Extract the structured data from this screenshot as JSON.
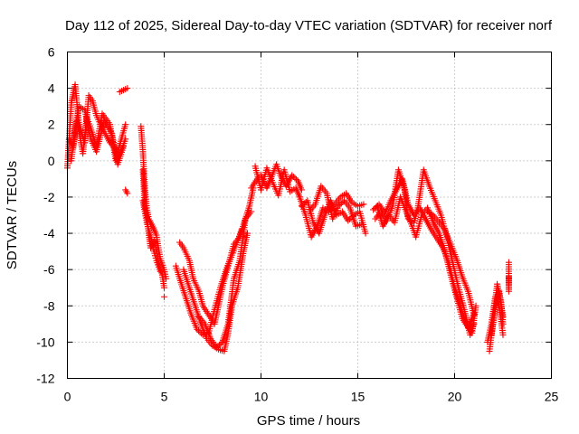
{
  "chart_data": {
    "type": "scatter",
    "title": "Day 112 of 2025, Sidereal Day-to-day VTEC variation (SDTVAR) for receiver norf",
    "xlabel": "GPS time / hours",
    "ylabel": "SDTVAR / TECUs",
    "xlim": [
      0,
      25
    ],
    "ylim": [
      -12,
      6
    ],
    "xticks": [
      0,
      5,
      10,
      15,
      20,
      25
    ],
    "yticks": [
      -12,
      -10,
      -8,
      -6,
      -4,
      -2,
      0,
      2,
      4,
      6
    ],
    "grid": true,
    "marker": "+",
    "series_color": "#ff0000",
    "tracks": [
      [
        [
          0.0,
          -0.4
        ],
        [
          0.2,
          3.2
        ],
        [
          0.4,
          4.2
        ],
        [
          0.6,
          2.0
        ],
        [
          0.9,
          1.0
        ],
        [
          1.1,
          3.6
        ],
        [
          1.3,
          3.3
        ],
        [
          1.5,
          2.5
        ],
        [
          1.8,
          1.8
        ],
        [
          2.2,
          1.0
        ],
        [
          2.6,
          0.5
        ],
        [
          3.0,
          2.0
        ]
      ],
      [
        [
          0.1,
          1.2
        ],
        [
          0.3,
          0.7
        ],
        [
          0.5,
          2.2
        ],
        [
          0.8,
          0.4
        ],
        [
          1.0,
          2.4
        ],
        [
          1.2,
          1.8
        ],
        [
          1.5,
          0.8
        ],
        [
          1.8,
          2.6
        ],
        [
          2.2,
          2.0
        ],
        [
          2.5,
          0.0
        ],
        [
          2.8,
          0.6
        ],
        [
          3.0,
          1.2
        ]
      ],
      [
        [
          0.2,
          0.0
        ],
        [
          0.4,
          1.8
        ],
        [
          0.6,
          3.0
        ],
        [
          0.9,
          2.8
        ],
        [
          1.2,
          1.2
        ],
        [
          1.5,
          0.5
        ],
        [
          1.9,
          2.2
        ],
        [
          2.3,
          1.5
        ],
        [
          2.6,
          -0.2
        ],
        [
          2.9,
          0.8
        ]
      ],
      [
        [
          2.7,
          3.8
        ],
        [
          2.9,
          3.9
        ],
        [
          3.1,
          4.0
        ]
      ],
      [
        [
          3.0,
          -1.6
        ],
        [
          3.1,
          -1.8
        ]
      ],
      [
        [
          3.8,
          1.9
        ],
        [
          3.9,
          0.5
        ],
        [
          4.0,
          -1.5
        ],
        [
          4.1,
          -2.6
        ],
        [
          4.2,
          -3.2
        ],
        [
          4.4,
          -3.6
        ],
        [
          4.6,
          -4.1
        ],
        [
          4.7,
          -4.8
        ],
        [
          4.8,
          -5.4
        ],
        [
          5.0,
          -6.0
        ],
        [
          5.1,
          -6.5
        ]
      ],
      [
        [
          3.9,
          -0.5
        ],
        [
          4.0,
          -2.5
        ],
        [
          4.1,
          -3.0
        ],
        [
          4.2,
          -4.0
        ],
        [
          4.3,
          -4.8
        ],
        [
          4.5,
          -4.4
        ],
        [
          4.7,
          -5.6
        ],
        [
          4.9,
          -6.3
        ],
        [
          5.0,
          -7.0
        ]
      ],
      [
        [
          3.9,
          -2.2
        ],
        [
          4.1,
          -3.4
        ],
        [
          4.3,
          -4.2
        ],
        [
          4.5,
          -5.1
        ],
        [
          4.6,
          -5.5
        ],
        [
          4.8,
          -6.1
        ]
      ],
      [
        [
          5.0,
          -7.5
        ]
      ],
      [
        [
          5.8,
          -4.5
        ],
        [
          6.0,
          -4.8
        ],
        [
          6.3,
          -5.5
        ],
        [
          6.5,
          -6.5
        ],
        [
          6.8,
          -7.2
        ],
        [
          7.0,
          -8.0
        ],
        [
          7.3,
          -8.5
        ],
        [
          7.6,
          -9.0
        ],
        [
          7.8,
          -8.0
        ],
        [
          8.0,
          -7.0
        ],
        [
          8.3,
          -5.8
        ],
        [
          8.6,
          -4.6
        ],
        [
          8.9,
          -4.2
        ],
        [
          9.1,
          -3.5
        ],
        [
          9.4,
          -2.5
        ],
        [
          9.6,
          -1.5
        ]
      ],
      [
        [
          6.0,
          -6.0
        ],
        [
          6.3,
          -7.0
        ],
        [
          6.6,
          -8.0
        ],
        [
          6.9,
          -9.0
        ],
        [
          7.2,
          -9.8
        ],
        [
          7.5,
          -10.2
        ],
        [
          7.8,
          -10.4
        ],
        [
          8.1,
          -10.5
        ],
        [
          8.3,
          -9.5
        ],
        [
          8.5,
          -8.0
        ],
        [
          8.8,
          -7.0
        ],
        [
          9.1,
          -5.0
        ],
        [
          9.3,
          -4.0
        ]
      ],
      [
        [
          5.6,
          -5.8
        ],
        [
          5.8,
          -6.5
        ],
        [
          6.1,
          -7.5
        ],
        [
          6.4,
          -8.5
        ],
        [
          6.7,
          -9.3
        ],
        [
          7.0,
          -9.6
        ],
        [
          7.3,
          -9.5
        ],
        [
          7.6,
          -8.2
        ],
        [
          7.9,
          -7.0
        ],
        [
          8.2,
          -6.0
        ],
        [
          8.5,
          -5.2
        ],
        [
          8.8,
          -4.4
        ],
        [
          9.0,
          -3.8
        ]
      ],
      [
        [
          6.8,
          -8.6
        ],
        [
          7.1,
          -9.0
        ],
        [
          7.4,
          -9.8
        ],
        [
          7.7,
          -10.3
        ],
        [
          8.0,
          -10.0
        ],
        [
          8.3,
          -9.0
        ],
        [
          8.6,
          -6.5
        ],
        [
          8.9,
          -5.5
        ],
        [
          9.2,
          -3.2
        ],
        [
          9.5,
          -2.8
        ]
      ],
      [
        [
          9.5,
          -1.5
        ],
        [
          9.8,
          -1.0
        ],
        [
          10.0,
          -0.8
        ],
        [
          10.3,
          -1.5
        ],
        [
          10.5,
          -1.0
        ],
        [
          10.8,
          -0.2
        ],
        [
          11.0,
          -0.8
        ],
        [
          11.3,
          -1.4
        ],
        [
          11.6,
          -0.8
        ],
        [
          11.9,
          -1.1
        ],
        [
          12.1,
          -1.6
        ]
      ],
      [
        [
          9.7,
          -0.3
        ],
        [
          10.0,
          -1.6
        ],
        [
          10.3,
          -0.4
        ],
        [
          10.6,
          -1.2
        ],
        [
          10.9,
          -1.9
        ],
        [
          11.2,
          -0.5
        ],
        [
          11.5,
          -1.7
        ],
        [
          11.8,
          -1.5
        ],
        [
          12.0,
          -2.0
        ]
      ],
      [
        [
          12.0,
          -2.0
        ],
        [
          12.3,
          -3.0
        ],
        [
          12.6,
          -4.2
        ],
        [
          12.9,
          -3.6
        ],
        [
          13.2,
          -2.6
        ],
        [
          13.5,
          -2.8
        ],
        [
          13.8,
          -2.4
        ],
        [
          14.1,
          -2.0
        ],
        [
          14.4,
          -1.8
        ],
        [
          14.7,
          -2.3
        ],
        [
          15.0,
          -2.5
        ],
        [
          15.3,
          -2.4
        ]
      ],
      [
        [
          12.1,
          -2.5
        ],
        [
          12.4,
          -2.2
        ],
        [
          12.7,
          -3.4
        ],
        [
          13.0,
          -4.0
        ],
        [
          13.3,
          -3.0
        ],
        [
          13.6,
          -2.2
        ],
        [
          13.9,
          -3.0
        ],
        [
          14.2,
          -2.8
        ],
        [
          14.5,
          -3.3
        ],
        [
          14.8,
          -3.0
        ],
        [
          15.1,
          -2.8
        ],
        [
          15.4,
          -4.0
        ]
      ],
      [
        [
          12.5,
          -2.8
        ],
        [
          12.8,
          -2.4
        ],
        [
          13.1,
          -1.4
        ],
        [
          13.4,
          -1.8
        ],
        [
          13.7,
          -3.2
        ],
        [
          14.0,
          -2.5
        ],
        [
          14.3,
          -2.2
        ],
        [
          14.6,
          -2.6
        ],
        [
          14.9,
          -3.6
        ],
        [
          15.2,
          -3.5
        ]
      ],
      [
        [
          15.8,
          -2.7
        ],
        [
          16.1,
          -2.4
        ],
        [
          16.4,
          -2.9
        ],
        [
          16.7,
          -2.2
        ],
        [
          17.0,
          -1.6
        ],
        [
          17.3,
          -1.0
        ],
        [
          17.6,
          -2.4
        ],
        [
          17.9,
          -3.0
        ],
        [
          18.2,
          -2.6
        ],
        [
          18.5,
          -3.2
        ],
        [
          18.8,
          -3.8
        ],
        [
          19.1,
          -4.3
        ],
        [
          19.4,
          -4.8
        ],
        [
          19.7,
          -5.6
        ],
        [
          20.0,
          -7.0
        ],
        [
          20.3,
          -8.0
        ],
        [
          20.6,
          -9.0
        ],
        [
          20.9,
          -9.5
        ],
        [
          21.1,
          -8.0
        ]
      ],
      [
        [
          15.9,
          -3.2
        ],
        [
          16.2,
          -2.8
        ],
        [
          16.5,
          -3.3
        ],
        [
          16.8,
          -2.5
        ],
        [
          17.1,
          -0.5
        ],
        [
          17.4,
          -1.5
        ],
        [
          17.6,
          -3.2
        ],
        [
          17.9,
          -3.4
        ],
        [
          18.1,
          -2.6
        ],
        [
          18.4,
          -0.5
        ],
        [
          18.7,
          -1.4
        ],
        [
          19.0,
          -2.2
        ],
        [
          19.3,
          -3.0
        ],
        [
          19.6,
          -4.2
        ],
        [
          19.9,
          -5.6
        ],
        [
          20.2,
          -7.0
        ],
        [
          20.5,
          -8.2
        ],
        [
          20.8,
          -9.6
        ],
        [
          21.0,
          -9.0
        ]
      ],
      [
        [
          16.0,
          -2.5
        ],
        [
          16.3,
          -3.6
        ],
        [
          16.6,
          -3.0
        ],
        [
          16.9,
          -3.4
        ],
        [
          17.2,
          -2.0
        ],
        [
          17.5,
          -2.8
        ],
        [
          17.8,
          -3.6
        ],
        [
          18.0,
          -4.2
        ],
        [
          18.3,
          -3.0
        ],
        [
          18.6,
          -2.6
        ],
        [
          18.9,
          -3.4
        ],
        [
          19.2,
          -4.0
        ],
        [
          19.5,
          -5.0
        ],
        [
          19.8,
          -6.3
        ],
        [
          20.1,
          -7.5
        ],
        [
          20.4,
          -8.7
        ],
        [
          20.7,
          -9.2
        ],
        [
          21.0,
          -8.4
        ]
      ],
      [
        [
          18.6,
          -2.8
        ],
        [
          18.9,
          -3.0
        ],
        [
          19.2,
          -3.4
        ],
        [
          19.5,
          -3.8
        ],
        [
          19.8,
          -4.6
        ],
        [
          20.1,
          -5.4
        ],
        [
          20.4,
          -6.4
        ],
        [
          20.7,
          -7.2
        ],
        [
          21.0,
          -8.5
        ]
      ],
      [
        [
          21.7,
          -10.0
        ],
        [
          21.9,
          -9.0
        ],
        [
          22.1,
          -7.5
        ],
        [
          22.3,
          -8.0
        ],
        [
          22.5,
          -9.6
        ]
      ],
      [
        [
          21.8,
          -10.5
        ],
        [
          22.0,
          -8.8
        ],
        [
          22.2,
          -6.8
        ],
        [
          22.4,
          -7.8
        ],
        [
          22.5,
          -9.0
        ]
      ],
      [
        [
          21.9,
          -9.6
        ],
        [
          22.1,
          -8.2
        ],
        [
          22.3,
          -7.2
        ],
        [
          22.5,
          -8.6
        ]
      ],
      [
        [
          22.8,
          -5.6
        ],
        [
          22.8,
          -7.2
        ],
        [
          22.8,
          -6.4
        ]
      ]
    ]
  }
}
